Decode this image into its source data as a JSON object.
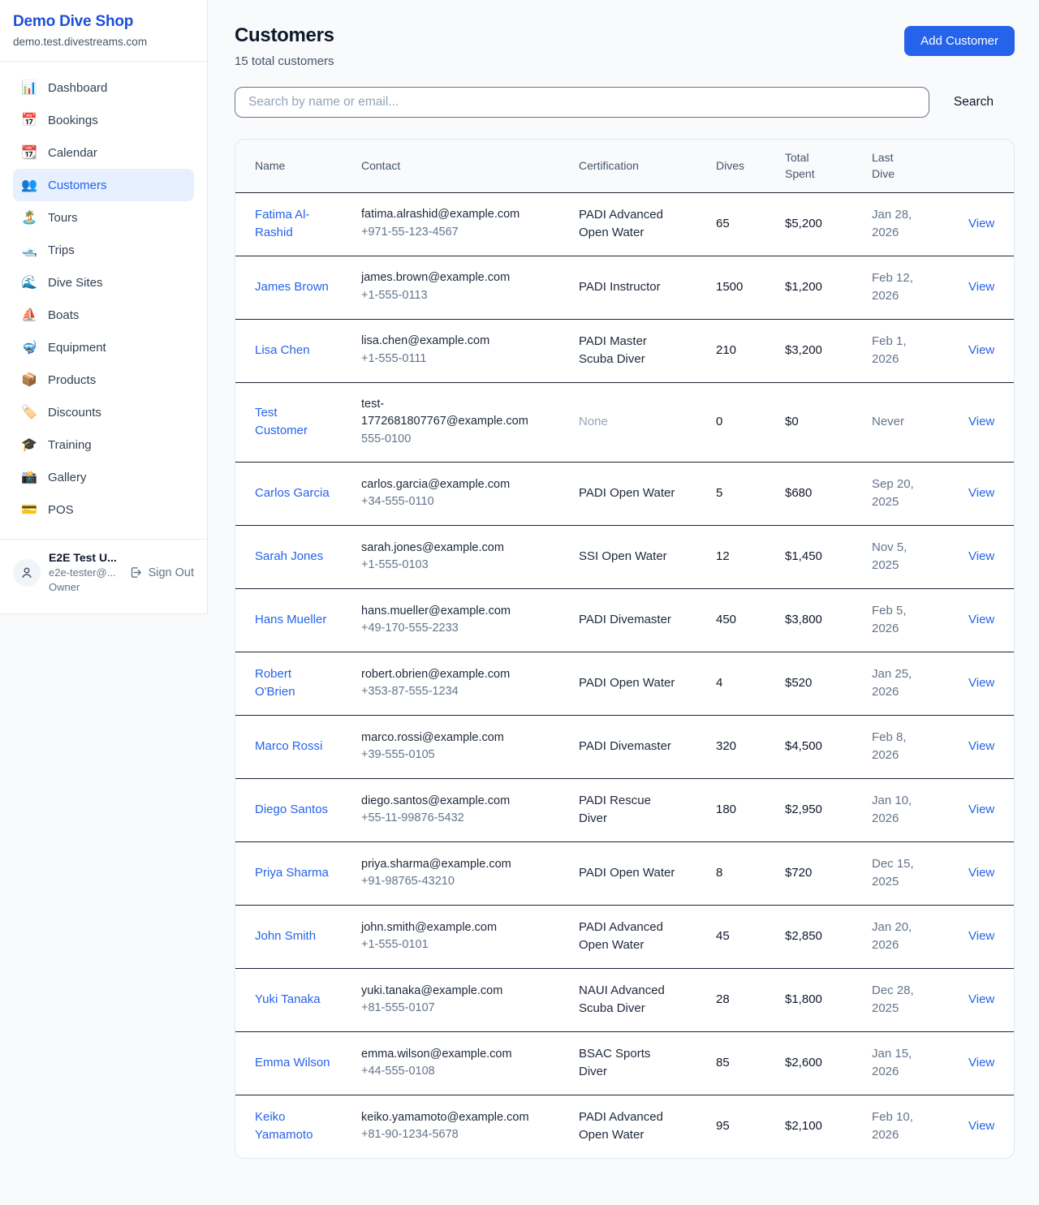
{
  "colors": {
    "accent": "#2563eb",
    "brand_text": "#1d4ed8",
    "active_item_bg": "#e7f0fe",
    "page_bg": "#f8fafc",
    "row_divider": "#1b2232",
    "muted_text": "#64748b"
  },
  "brand": {
    "name": "Demo Dive Shop",
    "domain": "demo.test.divestreams.com"
  },
  "sidebar": {
    "items": [
      {
        "icon": "📊",
        "label": "Dashboard",
        "active": false
      },
      {
        "icon": "📅",
        "label": "Bookings",
        "active": false
      },
      {
        "icon": "📆",
        "label": "Calendar",
        "active": false
      },
      {
        "icon": "👥",
        "label": "Customers",
        "active": true
      },
      {
        "icon": "🏝️",
        "label": "Tours",
        "active": false
      },
      {
        "icon": "🛥️",
        "label": "Trips",
        "active": false
      },
      {
        "icon": "🌊",
        "label": "Dive Sites",
        "active": false
      },
      {
        "icon": "⛵",
        "label": "Boats",
        "active": false
      },
      {
        "icon": "🤿",
        "label": "Equipment",
        "active": false
      },
      {
        "icon": "📦",
        "label": "Products",
        "active": false
      },
      {
        "icon": "🏷️",
        "label": "Discounts",
        "active": false
      },
      {
        "icon": "🎓",
        "label": "Training",
        "active": false
      },
      {
        "icon": "📸",
        "label": "Gallery",
        "active": false
      },
      {
        "icon": "💳",
        "label": "POS",
        "active": false
      }
    ]
  },
  "user": {
    "name": "E2E Test U...",
    "email": "e2e-tester@...",
    "role": "Owner",
    "sign_out_label": "Sign Out"
  },
  "header": {
    "title": "Customers",
    "subtitle": "15 total customers",
    "add_button_label": "Add Customer"
  },
  "search": {
    "placeholder": "Search by name or email...",
    "button_label": "Search"
  },
  "table": {
    "columns": [
      "Name",
      "Contact",
      "Certification",
      "Dives",
      "Total\nSpent",
      "Last\nDive"
    ],
    "view_label": "View",
    "rows": [
      {
        "name": "Fatima Al-Rashid",
        "email": "fatima.alrashid@example.com",
        "phone": "+971-55-123-4567",
        "certification": "PADI Advanced Open Water",
        "dives": "65",
        "total_spent": "$5,200",
        "last_dive": "Jan 28, 2026"
      },
      {
        "name": "James Brown",
        "email": "james.brown@example.com",
        "phone": "+1-555-0113",
        "certification": "PADI Instructor",
        "dives": "1500",
        "total_spent": "$1,200",
        "last_dive": "Feb 12, 2026"
      },
      {
        "name": "Lisa Chen",
        "email": "lisa.chen@example.com",
        "phone": "+1-555-0111",
        "certification": "PADI Master Scuba Diver",
        "dives": "210",
        "total_spent": "$3,200",
        "last_dive": "Feb 1, 2026"
      },
      {
        "name": "Test Customer",
        "email": "test-1772681807767@example.com",
        "phone": "555-0100",
        "certification": "None",
        "dives": "0",
        "total_spent": "$0",
        "last_dive": "Never"
      },
      {
        "name": "Carlos Garcia",
        "email": "carlos.garcia@example.com",
        "phone": "+34-555-0110",
        "certification": "PADI Open Water",
        "dives": "5",
        "total_spent": "$680",
        "last_dive": "Sep 20, 2025"
      },
      {
        "name": "Sarah Jones",
        "email": "sarah.jones@example.com",
        "phone": "+1-555-0103",
        "certification": "SSI Open Water",
        "dives": "12",
        "total_spent": "$1,450",
        "last_dive": "Nov 5, 2025"
      },
      {
        "name": "Hans Mueller",
        "email": "hans.mueller@example.com",
        "phone": "+49-170-555-2233",
        "certification": "PADI Divemaster",
        "dives": "450",
        "total_spent": "$3,800",
        "last_dive": "Feb 5, 2026"
      },
      {
        "name": "Robert O'Brien",
        "email": "robert.obrien@example.com",
        "phone": "+353-87-555-1234",
        "certification": "PADI Open Water",
        "dives": "4",
        "total_spent": "$520",
        "last_dive": "Jan 25, 2026"
      },
      {
        "name": "Marco Rossi",
        "email": "marco.rossi@example.com",
        "phone": "+39-555-0105",
        "certification": "PADI Divemaster",
        "dives": "320",
        "total_spent": "$4,500",
        "last_dive": "Feb 8, 2026"
      },
      {
        "name": "Diego Santos",
        "email": "diego.santos@example.com",
        "phone": "+55-11-99876-5432",
        "certification": "PADI Rescue Diver",
        "dives": "180",
        "total_spent": "$2,950",
        "last_dive": "Jan 10, 2026"
      },
      {
        "name": "Priya Sharma",
        "email": "priya.sharma@example.com",
        "phone": "+91-98765-43210",
        "certification": "PADI Open Water",
        "dives": "8",
        "total_spent": "$720",
        "last_dive": "Dec 15, 2025"
      },
      {
        "name": "John Smith",
        "email": "john.smith@example.com",
        "phone": "+1-555-0101",
        "certification": "PADI Advanced Open Water",
        "dives": "45",
        "total_spent": "$2,850",
        "last_dive": "Jan 20, 2026"
      },
      {
        "name": "Yuki Tanaka",
        "email": "yuki.tanaka@example.com",
        "phone": "+81-555-0107",
        "certification": "NAUI Advanced Scuba Diver",
        "dives": "28",
        "total_spent": "$1,800",
        "last_dive": "Dec 28, 2025"
      },
      {
        "name": "Emma Wilson",
        "email": "emma.wilson@example.com",
        "phone": "+44-555-0108",
        "certification": "BSAC Sports Diver",
        "dives": "85",
        "total_spent": "$2,600",
        "last_dive": "Jan 15, 2026"
      },
      {
        "name": "Keiko Yamamoto",
        "email": "keiko.yamamoto@example.com",
        "phone": "+81-90-1234-5678",
        "certification": "PADI Advanced Open Water",
        "dives": "95",
        "total_spent": "$2,100",
        "last_dive": "Feb 10, 2026"
      }
    ]
  }
}
